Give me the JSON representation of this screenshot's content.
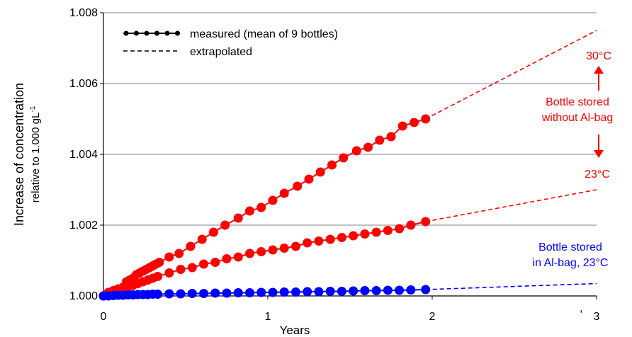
{
  "chart_data": {
    "type": "line",
    "xlabel": "Years",
    "ylabel": "Increase of concentration",
    "ylabel_sub": "relative to 1.000 gL",
    "ylabel_sup": "-1",
    "xlim": [
      0,
      3
    ],
    "ylim": [
      1.0,
      1.008
    ],
    "x_ticks": [
      "0",
      "1",
      "2",
      "3"
    ],
    "y_ticks": [
      "1.000",
      "1.002",
      "1.004",
      "1.006",
      "1.008"
    ],
    "grid": "horizontal",
    "legend": {
      "placement": "top-left",
      "entries": [
        {
          "label": "measured (mean of 9 bottles)",
          "style": "solid-markers"
        },
        {
          "label": "extrapolated",
          "style": "dashed"
        }
      ]
    },
    "colors": {
      "red": "#ff0000",
      "blue": "#0000ff",
      "axis": "#000000",
      "grid": "#808080"
    },
    "series": [
      {
        "color": "#ff0000",
        "measured": {
          "x": [
            0.0,
            0.03,
            0.06,
            0.09,
            0.12,
            0.14,
            0.16,
            0.18,
            0.2,
            0.22,
            0.24,
            0.26,
            0.28,
            0.3,
            0.32,
            0.34,
            0.4,
            0.46,
            0.53,
            0.6,
            0.67,
            0.74,
            0.82,
            0.89,
            0.96,
            1.03,
            1.1,
            1.18,
            1.25,
            1.32,
            1.39,
            1.46,
            1.54,
            1.61,
            1.68,
            1.75,
            1.82,
            1.89,
            1.96
          ],
          "y": [
            1.0,
            1.0001,
            1.00015,
            1.0002,
            1.00025,
            1.0004,
            1.00045,
            1.0005,
            1.0006,
            1.00065,
            1.0007,
            1.00075,
            1.0008,
            1.00085,
            1.0009,
            1.00095,
            1.0011,
            1.0012,
            1.0014,
            1.0016,
            1.0018,
            1.002,
            1.0022,
            1.0024,
            1.0025,
            1.0027,
            1.0029,
            1.0031,
            1.0033,
            1.0035,
            1.0037,
            1.0039,
            1.0041,
            1.0042,
            1.0044,
            1.0045,
            1.0048,
            1.0049,
            1.005
          ]
        },
        "extrapolated": {
          "x": [
            1.96,
            3.0
          ],
          "y": [
            1.005,
            1.0075
          ]
        }
      },
      {
        "color": "#ff0000",
        "measured": {
          "x": [
            0.0,
            0.03,
            0.06,
            0.09,
            0.12,
            0.15,
            0.18,
            0.21,
            0.24,
            0.27,
            0.3,
            0.33,
            0.4,
            0.47,
            0.54,
            0.61,
            0.68,
            0.75,
            0.82,
            0.89,
            0.96,
            1.03,
            1.1,
            1.17,
            1.24,
            1.31,
            1.38,
            1.45,
            1.52,
            1.59,
            1.66,
            1.73,
            1.8,
            1.87,
            1.96
          ],
          "y": [
            1.0,
            1.00005,
            1.0001,
            1.00015,
            1.0002,
            1.00025,
            1.0003,
            1.00035,
            1.0004,
            1.00045,
            1.0005,
            1.00055,
            1.00065,
            1.00075,
            1.0008,
            1.0009,
            1.00095,
            1.00105,
            1.0011,
            1.0012,
            1.00125,
            1.0013,
            1.00135,
            1.0014,
            1.0015,
            1.00155,
            1.0016,
            1.00165,
            1.0017,
            1.00175,
            1.0018,
            1.00185,
            1.0019,
            1.002,
            1.0021
          ]
        },
        "extrapolated": {
          "x": [
            1.96,
            3.0
          ],
          "y": [
            1.0021,
            1.003
          ]
        }
      },
      {
        "color": "#0000ff",
        "measured": {
          "x": [
            0.0,
            0.03,
            0.06,
            0.09,
            0.12,
            0.15,
            0.18,
            0.21,
            0.24,
            0.27,
            0.3,
            0.33,
            0.4,
            0.47,
            0.54,
            0.61,
            0.68,
            0.75,
            0.82,
            0.89,
            0.96,
            1.03,
            1.1,
            1.17,
            1.24,
            1.31,
            1.38,
            1.45,
            1.52,
            1.59,
            1.66,
            1.73,
            1.8,
            1.87,
            1.96
          ],
          "y": [
            1.0,
            1.0,
            1.00001,
            1.00002,
            1.00002,
            1.00003,
            1.00003,
            1.00004,
            1.00004,
            1.00004,
            1.00005,
            1.00005,
            1.00006,
            1.00006,
            1.00007,
            1.00007,
            1.00008,
            1.00008,
            1.00009,
            1.00009,
            1.0001,
            1.0001,
            1.00011,
            1.00011,
            1.00012,
            1.00012,
            1.00013,
            1.00013,
            1.00014,
            1.00015,
            1.00015,
            1.00016,
            1.00016,
            1.00017,
            1.00018
          ]
        },
        "extrapolated": {
          "x": [
            1.96,
            3.0
          ],
          "y": [
            1.00018,
            1.00035
          ]
        }
      }
    ],
    "annotations": {
      "t30": "30°C",
      "t23": "23°C",
      "no_bag_line1": "Bottle stored",
      "no_bag_line2": "without Al-bag",
      "bag_line1": "Bottle stored",
      "bag_line2": "in Al-bag, 23°C",
      "stray_mark": ","
    }
  }
}
